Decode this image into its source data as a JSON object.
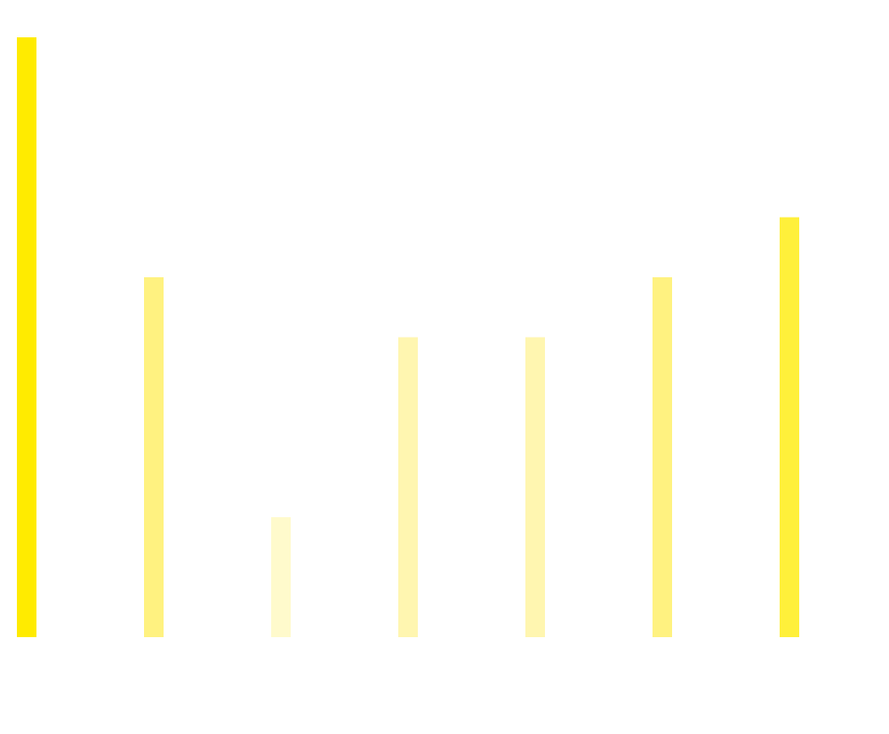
{
  "chart_data": {
    "type": "bar",
    "categories": [
      null,
      null,
      null,
      null,
      null,
      null,
      null
    ],
    "values": [
      10,
      6,
      2,
      5,
      5,
      6,
      7
    ],
    "colors": [
      "#ffeb00",
      "#fff280",
      "#fffacc",
      "#fff6b0",
      "#fff6b0",
      "#fff280",
      "#fff03a"
    ],
    "ylim": [
      0,
      10
    ]
  }
}
